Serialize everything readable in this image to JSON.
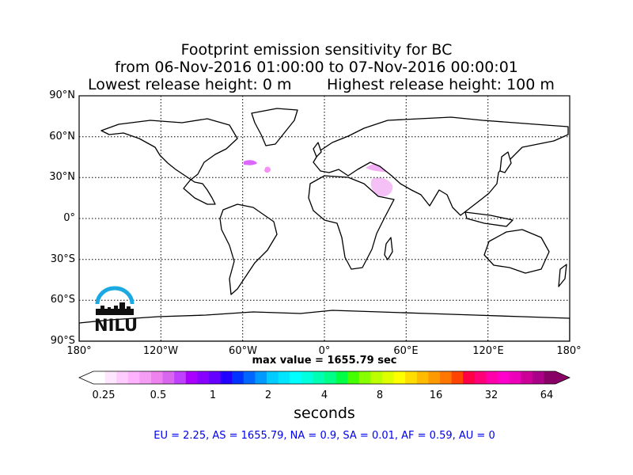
{
  "title": {
    "line1": "Footprint emission sensitivity for BC",
    "line2": "from 06-Nov-2016 01:00:00 to 07-Nov-2016 00:00:01",
    "line3_left": "Lowest release height: 0 m",
    "line3_right": "Highest release height: 100 m"
  },
  "map": {
    "projection": "equirectangular",
    "lon_range": [
      -180,
      180
    ],
    "lat_range": [
      -90,
      90
    ],
    "grid": true,
    "lat_labels": [
      "90°N",
      "60°N",
      "30°N",
      "0°",
      "30°S",
      "60°S",
      "90°S"
    ],
    "lon_labels": [
      "180°",
      "120°W",
      "60°W",
      "0°",
      "60°E",
      "120°E",
      "180°"
    ],
    "logo_text": "NILU",
    "logo_color": "#1aa9e1"
  },
  "max_value_text": "max value = 1655.79 sec",
  "colorbar": {
    "tick_labels": [
      "0.25",
      "0.5",
      "1",
      "2",
      "4",
      "8",
      "16",
      "32",
      "64"
    ],
    "units": "seconds",
    "colors": [
      "#ffffff",
      "#ffe6ff",
      "#ffccff",
      "#ffb3ff",
      "#f59cf5",
      "#ee82ee",
      "#d966ee",
      "#c040ff",
      "#aa00ff",
      "#8800ff",
      "#6600ff",
      "#2200ff",
      "#0033ff",
      "#0066ff",
      "#0099ff",
      "#00ccff",
      "#00e5ff",
      "#00ffff",
      "#00ffdd",
      "#00ffb3",
      "#00ff88",
      "#00ff44",
      "#44ff00",
      "#88ff00",
      "#bbff00",
      "#ddff00",
      "#ffff00",
      "#ffdd00",
      "#ffbb00",
      "#ff9900",
      "#ff7700",
      "#ff4400",
      "#ff0044",
      "#ff0077",
      "#ff00aa",
      "#ff00cc",
      "#ee00bb",
      "#cc0099",
      "#aa0088",
      "#880066"
    ]
  },
  "stats_text": "EU = 2.25,  AS = 1655.79,  NA = 0.9,  SA = 0.01,  AF = 0.59,  AU = 0"
}
